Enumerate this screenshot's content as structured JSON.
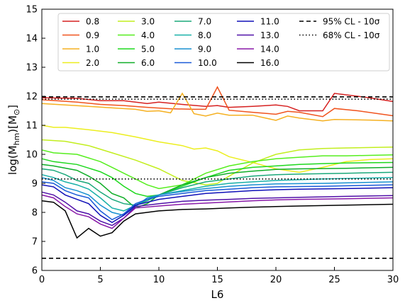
{
  "chart_data": {
    "type": "line",
    "xlabel": "L6",
    "ylabel_main": "log(M",
    "ylabel_sub": "hm",
    "ylabel_mid": ")[M",
    "ylabel_sun": "⊙",
    "ylabel_end": "]",
    "xlim": [
      0,
      30
    ],
    "ylim": [
      6,
      15
    ],
    "x_ticks": [
      0,
      5,
      10,
      15,
      20,
      25,
      30
    ],
    "y_ticks": [
      6,
      7,
      8,
      9,
      10,
      11,
      12,
      13,
      14,
      15
    ],
    "grid": false,
    "legend_position": "top-right",
    "legend_columns": 5,
    "series": [
      {
        "name": "0.8",
        "color": "#d62020",
        "x": [
          0,
          3,
          5,
          7,
          9,
          10,
          12,
          14,
          15,
          16,
          18,
          20,
          21,
          22,
          24,
          25,
          27,
          28,
          30
        ],
        "y": [
          11.95,
          11.93,
          11.85,
          11.85,
          11.75,
          11.8,
          11.72,
          11.65,
          11.68,
          11.62,
          11.65,
          11.7,
          11.65,
          11.5,
          11.5,
          12.1,
          12.0,
          11.95,
          11.82
        ]
      },
      {
        "name": "0.9",
        "color": "#f0531e",
        "x": [
          0,
          3,
          5,
          7,
          9,
          11,
          13,
          14,
          15,
          16,
          18,
          20,
          21,
          22,
          24,
          25,
          27,
          30
        ],
        "y": [
          11.88,
          11.8,
          11.72,
          11.68,
          11.62,
          11.57,
          11.55,
          11.55,
          12.32,
          11.52,
          11.45,
          11.38,
          11.48,
          11.45,
          11.3,
          11.58,
          11.5,
          11.33
        ]
      },
      {
        "name": "1.0",
        "color": "#f5b020",
        "x": [
          0,
          2,
          4,
          6,
          8,
          9,
          10,
          11,
          12,
          13,
          14,
          15,
          16,
          18,
          20,
          21,
          22,
          24,
          25,
          28,
          30
        ],
        "y": [
          11.75,
          11.7,
          11.65,
          11.6,
          11.55,
          11.48,
          11.5,
          11.43,
          12.1,
          11.4,
          11.32,
          11.42,
          11.35,
          11.35,
          11.17,
          11.32,
          11.25,
          11.15,
          11.2,
          11.18,
          11.15
        ]
      },
      {
        "name": "2.0",
        "color": "#ecee1e",
        "x": [
          0,
          1,
          2,
          4,
          6,
          8,
          10,
          12,
          13,
          14,
          15,
          16,
          18,
          20,
          22,
          24,
          26,
          28,
          30
        ],
        "y": [
          11.0,
          10.93,
          10.93,
          10.85,
          10.75,
          10.6,
          10.43,
          10.3,
          10.18,
          10.22,
          10.12,
          9.92,
          9.72,
          9.5,
          9.38,
          9.55,
          9.75,
          9.82,
          9.85
        ]
      },
      {
        "name": "3.0",
        "color": "#c2ee1e",
        "x": [
          0,
          2,
          4,
          6,
          8,
          10,
          12,
          14,
          15,
          16,
          18,
          20,
          22,
          24,
          26,
          30
        ],
        "y": [
          10.5,
          10.45,
          10.3,
          10.05,
          9.8,
          9.5,
          9.1,
          8.95,
          9.0,
          9.25,
          9.7,
          10.0,
          10.15,
          10.2,
          10.22,
          10.25
        ]
      },
      {
        "name": "4.0",
        "color": "#56ee1e",
        "x": [
          0,
          1,
          3,
          5,
          6,
          7,
          8,
          9,
          10,
          12,
          14,
          16,
          18,
          20,
          22,
          24,
          26,
          30
        ],
        "y": [
          10.15,
          10.05,
          10.0,
          9.75,
          9.55,
          9.35,
          9.15,
          8.95,
          8.82,
          8.95,
          9.35,
          9.6,
          9.75,
          9.85,
          9.9,
          9.95,
          9.95,
          9.98
        ]
      },
      {
        "name": "5.0",
        "color": "#1ed81e",
        "x": [
          0,
          1,
          3,
          5,
          6,
          7,
          8,
          9,
          10,
          12,
          14,
          16,
          18,
          20,
          22,
          24,
          26,
          30
        ],
        "y": [
          9.85,
          9.75,
          9.65,
          9.4,
          9.2,
          8.9,
          8.65,
          8.55,
          8.6,
          8.9,
          9.2,
          9.45,
          9.55,
          9.6,
          9.65,
          9.68,
          9.7,
          9.72
        ]
      },
      {
        "name": "6.0",
        "color": "#10ae28",
        "x": [
          0,
          1,
          3,
          4,
          5,
          6,
          7,
          8,
          9,
          10,
          12,
          14,
          16,
          18,
          20,
          22,
          26,
          30
        ],
        "y": [
          9.65,
          9.6,
          9.45,
          9.25,
          9.0,
          8.65,
          8.5,
          8.15,
          8.3,
          8.6,
          8.95,
          9.2,
          9.35,
          9.42,
          9.48,
          9.5,
          9.52,
          9.55
        ]
      },
      {
        "name": "7.0",
        "color": "#1aa87a",
        "x": [
          0,
          1,
          2,
          3,
          4,
          5,
          6,
          7,
          8,
          9,
          10,
          12,
          14,
          16,
          18,
          20,
          22,
          26,
          30
        ],
        "y": [
          9.5,
          9.45,
          9.3,
          9.1,
          9.0,
          8.7,
          8.45,
          8.3,
          8.25,
          8.4,
          8.6,
          8.85,
          9.05,
          9.15,
          9.25,
          9.3,
          9.32,
          9.35,
          9.38
        ]
      },
      {
        "name": "8.0",
        "color": "#18b0a8",
        "x": [
          0,
          1,
          2,
          3,
          4,
          5,
          6,
          7,
          8,
          9,
          10,
          12,
          14,
          16,
          18,
          20,
          24,
          30
        ],
        "y": [
          9.3,
          9.2,
          9.05,
          8.95,
          8.8,
          8.5,
          8.15,
          8.05,
          8.25,
          8.45,
          8.6,
          8.75,
          8.9,
          9.0,
          9.05,
          9.1,
          9.15,
          9.2
        ]
      },
      {
        "name": "9.0",
        "color": "#1890d0",
        "x": [
          0,
          1,
          2,
          3,
          4,
          5,
          6,
          7,
          8,
          9,
          10,
          12,
          14,
          16,
          18,
          20,
          24,
          30
        ],
        "y": [
          9.2,
          9.1,
          8.85,
          8.75,
          8.6,
          8.25,
          8.0,
          7.9,
          8.2,
          8.5,
          8.6,
          8.72,
          8.82,
          8.9,
          8.95,
          8.98,
          9.0,
          9.05
        ]
      },
      {
        "name": "10.0",
        "color": "#1a5ad8",
        "x": [
          0,
          1,
          2,
          3,
          4,
          5,
          6,
          7,
          8,
          9,
          10,
          12,
          14,
          16,
          18,
          20,
          24,
          30
        ],
        "y": [
          9.05,
          9.0,
          8.75,
          8.6,
          8.5,
          8.05,
          7.75,
          7.95,
          8.3,
          8.45,
          8.55,
          8.65,
          8.75,
          8.8,
          8.85,
          8.88,
          8.9,
          8.95
        ]
      },
      {
        "name": "11.0",
        "color": "#1010b8",
        "x": [
          0,
          1,
          2,
          3,
          4,
          5,
          6,
          7,
          8,
          10,
          12,
          14,
          16,
          18,
          20,
          22,
          26,
          30
        ],
        "y": [
          8.95,
          8.88,
          8.6,
          8.45,
          8.3,
          7.9,
          7.65,
          7.9,
          8.25,
          8.45,
          8.55,
          8.65,
          8.7,
          8.75,
          8.78,
          8.8,
          8.82,
          8.85
        ]
      },
      {
        "name": "13.0",
        "color": "#5010a8",
        "x": [
          0,
          1,
          2,
          3,
          4,
          5,
          6,
          7,
          8,
          10,
          12,
          14,
          16,
          18,
          20,
          22,
          26,
          30
        ],
        "y": [
          8.7,
          8.6,
          8.35,
          8.05,
          7.95,
          7.7,
          7.55,
          7.8,
          8.2,
          8.3,
          8.38,
          8.42,
          8.45,
          8.48,
          8.5,
          8.52,
          8.55,
          8.58
        ]
      },
      {
        "name": "14.0",
        "color": "#8818a8",
        "x": [
          0,
          1,
          2,
          3,
          4,
          5,
          6,
          7,
          8,
          10,
          12,
          14,
          16,
          18,
          20,
          22,
          26,
          30
        ],
        "y": [
          8.6,
          8.5,
          8.2,
          7.95,
          7.85,
          7.6,
          7.45,
          7.8,
          8.15,
          8.22,
          8.28,
          8.32,
          8.36,
          8.4,
          8.43,
          8.45,
          8.47,
          8.5
        ]
      },
      {
        "name": "16.0",
        "color": "#000000",
        "x": [
          0,
          1,
          2,
          3,
          4,
          5,
          6,
          7,
          8,
          10,
          12,
          14,
          16,
          18,
          20,
          22,
          26,
          30
        ],
        "y": [
          8.4,
          8.35,
          8.05,
          7.12,
          7.45,
          7.18,
          7.3,
          7.7,
          7.95,
          8.05,
          8.1,
          8.12,
          8.15,
          8.18,
          8.2,
          8.22,
          8.25,
          8.28
        ]
      }
    ],
    "reference_lines": [
      {
        "name": "95% CL - 10σ",
        "style": "dashed",
        "color": "#000000",
        "y_upper": 11.98,
        "y_lower": 6.42
      },
      {
        "name": "68% CL - 10σ",
        "style": "dotted",
        "color": "#000000",
        "y_upper": 11.9,
        "y_lower": 9.15
      }
    ]
  }
}
